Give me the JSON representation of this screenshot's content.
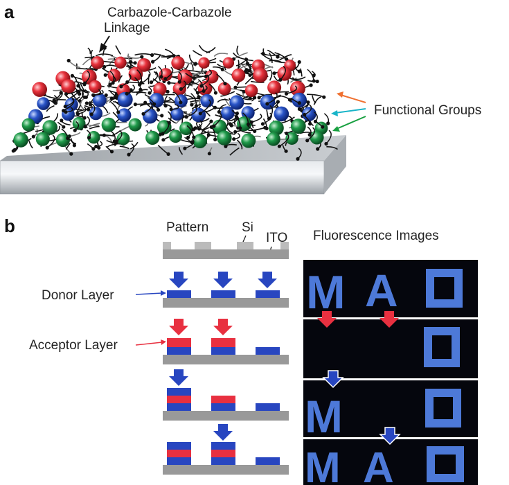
{
  "panel_a": {
    "letter": "a",
    "linkage_label_line1": "Carbazole-Carbazole",
    "linkage_label_line2": "Linkage",
    "functional_groups_label": "Functional Groups",
    "colors": {
      "red": "#e8323c",
      "blue": "#2a55c8",
      "green": "#1f9a4a",
      "substrate": "#c4c8cc"
    }
  },
  "panel_b": {
    "letter": "b",
    "pattern_label": "Pattern",
    "si_label": "Si",
    "ito_label": "ITO",
    "fluorescence_label": "Fluorescence Images",
    "donor_label": "Donor Layer",
    "acceptor_label": "Acceptor Layer",
    "image_letters": [
      "M",
      "A"
    ],
    "colors": {
      "donor": "#2846c0",
      "acceptor": "#e83040",
      "glow": "#4d79d8",
      "image_bg": "#05060d",
      "substrate": "#999999"
    }
  }
}
